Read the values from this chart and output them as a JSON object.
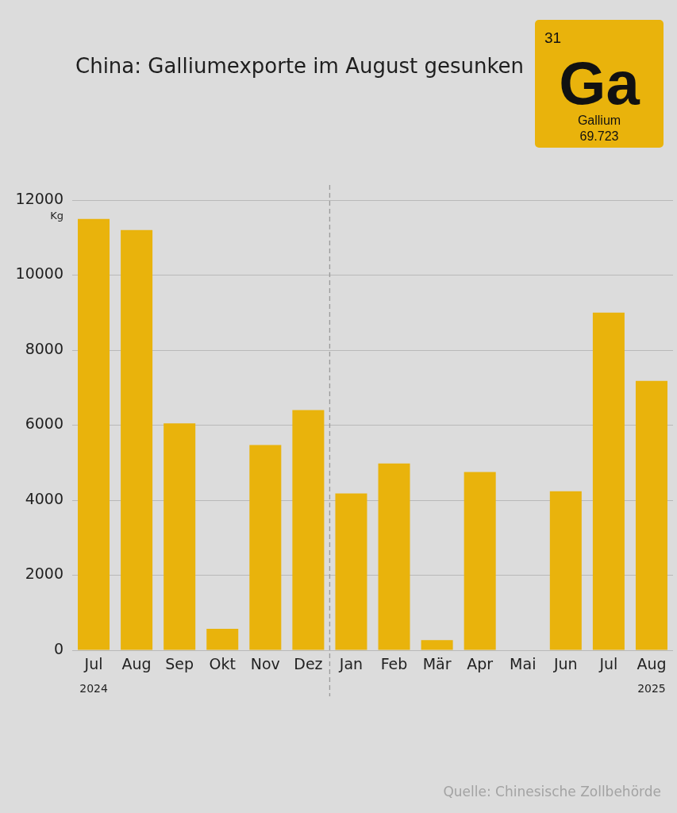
{
  "chart_data": {
    "type": "bar",
    "title": "China: Galliumexporte im August gesunken",
    "ylabel": "Kg",
    "categories": [
      "Jul\n2024",
      "Aug",
      "Sep",
      "Okt",
      "Nov",
      "Dez",
      "Jan",
      "Feb",
      "Mär",
      "Apr",
      "Mai",
      "Jun",
      "Jul",
      "Aug\n2025"
    ],
    "values": [
      11500,
      11200,
      6050,
      570,
      5470,
      6400,
      4180,
      4980,
      270,
      4750,
      0,
      4240,
      9000,
      7180
    ],
    "color": "#e9b30c",
    "ylim": [
      0,
      12000
    ],
    "yticks": [
      0,
      2000,
      4000,
      6000,
      8000,
      10000,
      12000
    ],
    "grid": "y",
    "ref_lines": [
      {
        "axis": "x",
        "value": "Jan",
        "color": "#9a9a9a",
        "line_style": "dashed"
      }
    ],
    "annotations": [
      "Quelle: Chinesische Zollbehörde",
      "31",
      "Ga",
      "Gallium",
      "69.723"
    ]
  }
}
